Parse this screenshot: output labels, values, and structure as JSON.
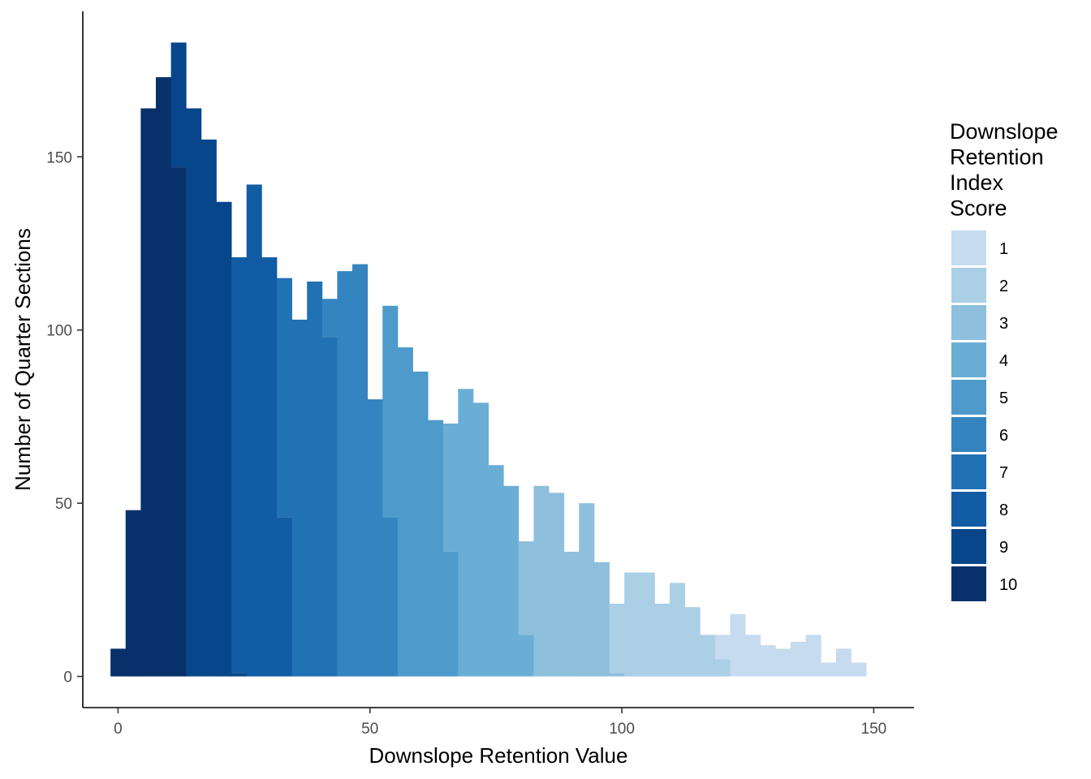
{
  "chart_data": {
    "type": "bar",
    "subtype": "stacked-histogram",
    "title": "",
    "xlabel": "Downslope Retention Value",
    "ylabel": "Number of Quarter Sections",
    "xlim": [
      -7,
      158
    ],
    "ylim": [
      -9,
      192
    ],
    "x_ticks": [
      0,
      50,
      100,
      150
    ],
    "y_ticks": [
      0,
      50,
      100,
      150
    ],
    "grid": false,
    "bin_width": 3,
    "legend": {
      "title_lines": [
        "Downslope",
        "Retention",
        "Index",
        "Score"
      ],
      "position": "right",
      "entries": [
        {
          "label": "1",
          "score": 1,
          "color": "#c6dbef"
        },
        {
          "label": "2",
          "score": 2,
          "color": "#abcfe5"
        },
        {
          "label": "3",
          "score": 3,
          "color": "#8ebfdd"
        },
        {
          "label": "4",
          "score": 4,
          "color": "#6aaed6"
        },
        {
          "label": "5",
          "score": 5,
          "color": "#4e9acb"
        },
        {
          "label": "6",
          "score": 6,
          "color": "#3484bf"
        },
        {
          "label": "7",
          "score": 7,
          "color": "#2171b5"
        },
        {
          "label": "8",
          "score": 8,
          "color": "#115ca5"
        },
        {
          "label": "9",
          "score": 9,
          "color": "#08468b"
        },
        {
          "label": "10",
          "score": 10,
          "color": "#08306b"
        }
      ]
    },
    "bins": [
      {
        "center": 0,
        "parts": [
          {
            "score": 10,
            "value": 8
          }
        ]
      },
      {
        "center": 3,
        "parts": [
          {
            "score": 10,
            "value": 48
          }
        ]
      },
      {
        "center": 6,
        "parts": [
          {
            "score": 10,
            "value": 164
          }
        ]
      },
      {
        "center": 9,
        "parts": [
          {
            "score": 10,
            "value": 173
          }
        ]
      },
      {
        "center": 12,
        "parts": [
          {
            "score": 10,
            "value": 147
          },
          {
            "score": 9,
            "value": 36
          }
        ]
      },
      {
        "center": 15,
        "parts": [
          {
            "score": 9,
            "value": 164
          }
        ]
      },
      {
        "center": 18,
        "parts": [
          {
            "score": 9,
            "value": 155
          }
        ]
      },
      {
        "center": 21,
        "parts": [
          {
            "score": 9,
            "value": 137
          }
        ]
      },
      {
        "center": 24,
        "parts": [
          {
            "score": 9,
            "value": 1
          },
          {
            "score": 8,
            "value": 120
          }
        ]
      },
      {
        "center": 27,
        "parts": [
          {
            "score": 8,
            "value": 142
          }
        ]
      },
      {
        "center": 30,
        "parts": [
          {
            "score": 8,
            "value": 121
          }
        ]
      },
      {
        "center": 33,
        "parts": [
          {
            "score": 8,
            "value": 46
          },
          {
            "score": 7,
            "value": 69
          }
        ]
      },
      {
        "center": 36,
        "parts": [
          {
            "score": 7,
            "value": 103
          }
        ]
      },
      {
        "center": 39,
        "parts": [
          {
            "score": 7,
            "value": 114
          }
        ]
      },
      {
        "center": 42,
        "parts": [
          {
            "score": 7,
            "value": 98
          },
          {
            "score": 6,
            "value": 11
          }
        ]
      },
      {
        "center": 45,
        "parts": [
          {
            "score": 6,
            "value": 117
          }
        ]
      },
      {
        "center": 48,
        "parts": [
          {
            "score": 6,
            "value": 119
          }
        ]
      },
      {
        "center": 51,
        "parts": [
          {
            "score": 6,
            "value": 80
          }
        ]
      },
      {
        "center": 54,
        "parts": [
          {
            "score": 6,
            "value": 46
          },
          {
            "score": 5,
            "value": 61
          }
        ]
      },
      {
        "center": 57,
        "parts": [
          {
            "score": 5,
            "value": 95
          }
        ]
      },
      {
        "center": 60,
        "parts": [
          {
            "score": 5,
            "value": 88
          }
        ]
      },
      {
        "center": 63,
        "parts": [
          {
            "score": 5,
            "value": 74
          }
        ]
      },
      {
        "center": 66,
        "parts": [
          {
            "score": 5,
            "value": 36
          },
          {
            "score": 4,
            "value": 37
          }
        ]
      },
      {
        "center": 69,
        "parts": [
          {
            "score": 4,
            "value": 83
          }
        ]
      },
      {
        "center": 72,
        "parts": [
          {
            "score": 4,
            "value": 79
          }
        ]
      },
      {
        "center": 75,
        "parts": [
          {
            "score": 4,
            "value": 61
          }
        ]
      },
      {
        "center": 78,
        "parts": [
          {
            "score": 4,
            "value": 55
          }
        ]
      },
      {
        "center": 81,
        "parts": [
          {
            "score": 4,
            "value": 12
          },
          {
            "score": 3,
            "value": 27
          }
        ]
      },
      {
        "center": 84,
        "parts": [
          {
            "score": 3,
            "value": 55
          }
        ]
      },
      {
        "center": 87,
        "parts": [
          {
            "score": 3,
            "value": 53
          }
        ]
      },
      {
        "center": 90,
        "parts": [
          {
            "score": 3,
            "value": 36
          }
        ]
      },
      {
        "center": 93,
        "parts": [
          {
            "score": 3,
            "value": 50
          }
        ]
      },
      {
        "center": 96,
        "parts": [
          {
            "score": 3,
            "value": 33
          }
        ]
      },
      {
        "center": 99,
        "parts": [
          {
            "score": 3,
            "value": 1
          },
          {
            "score": 2,
            "value": 20
          }
        ]
      },
      {
        "center": 102,
        "parts": [
          {
            "score": 2,
            "value": 30
          }
        ]
      },
      {
        "center": 105,
        "parts": [
          {
            "score": 2,
            "value": 30
          }
        ]
      },
      {
        "center": 108,
        "parts": [
          {
            "score": 2,
            "value": 21
          }
        ]
      },
      {
        "center": 111,
        "parts": [
          {
            "score": 2,
            "value": 27
          }
        ]
      },
      {
        "center": 114,
        "parts": [
          {
            "score": 2,
            "value": 20
          }
        ]
      },
      {
        "center": 117,
        "parts": [
          {
            "score": 2,
            "value": 12
          }
        ]
      },
      {
        "center": 120,
        "parts": [
          {
            "score": 2,
            "value": 5
          },
          {
            "score": 1,
            "value": 7
          }
        ]
      },
      {
        "center": 123,
        "parts": [
          {
            "score": 1,
            "value": 18
          }
        ]
      },
      {
        "center": 126,
        "parts": [
          {
            "score": 1,
            "value": 12
          }
        ]
      },
      {
        "center": 129,
        "parts": [
          {
            "score": 1,
            "value": 9
          }
        ]
      },
      {
        "center": 132,
        "parts": [
          {
            "score": 1,
            "value": 8
          }
        ]
      },
      {
        "center": 135,
        "parts": [
          {
            "score": 1,
            "value": 10
          }
        ]
      },
      {
        "center": 138,
        "parts": [
          {
            "score": 1,
            "value": 12
          }
        ]
      },
      {
        "center": 141,
        "parts": [
          {
            "score": 1,
            "value": 4
          }
        ]
      },
      {
        "center": 144,
        "parts": [
          {
            "score": 1,
            "value": 8
          }
        ]
      },
      {
        "center": 147,
        "parts": [
          {
            "score": 1,
            "value": 4
          }
        ]
      }
    ]
  }
}
